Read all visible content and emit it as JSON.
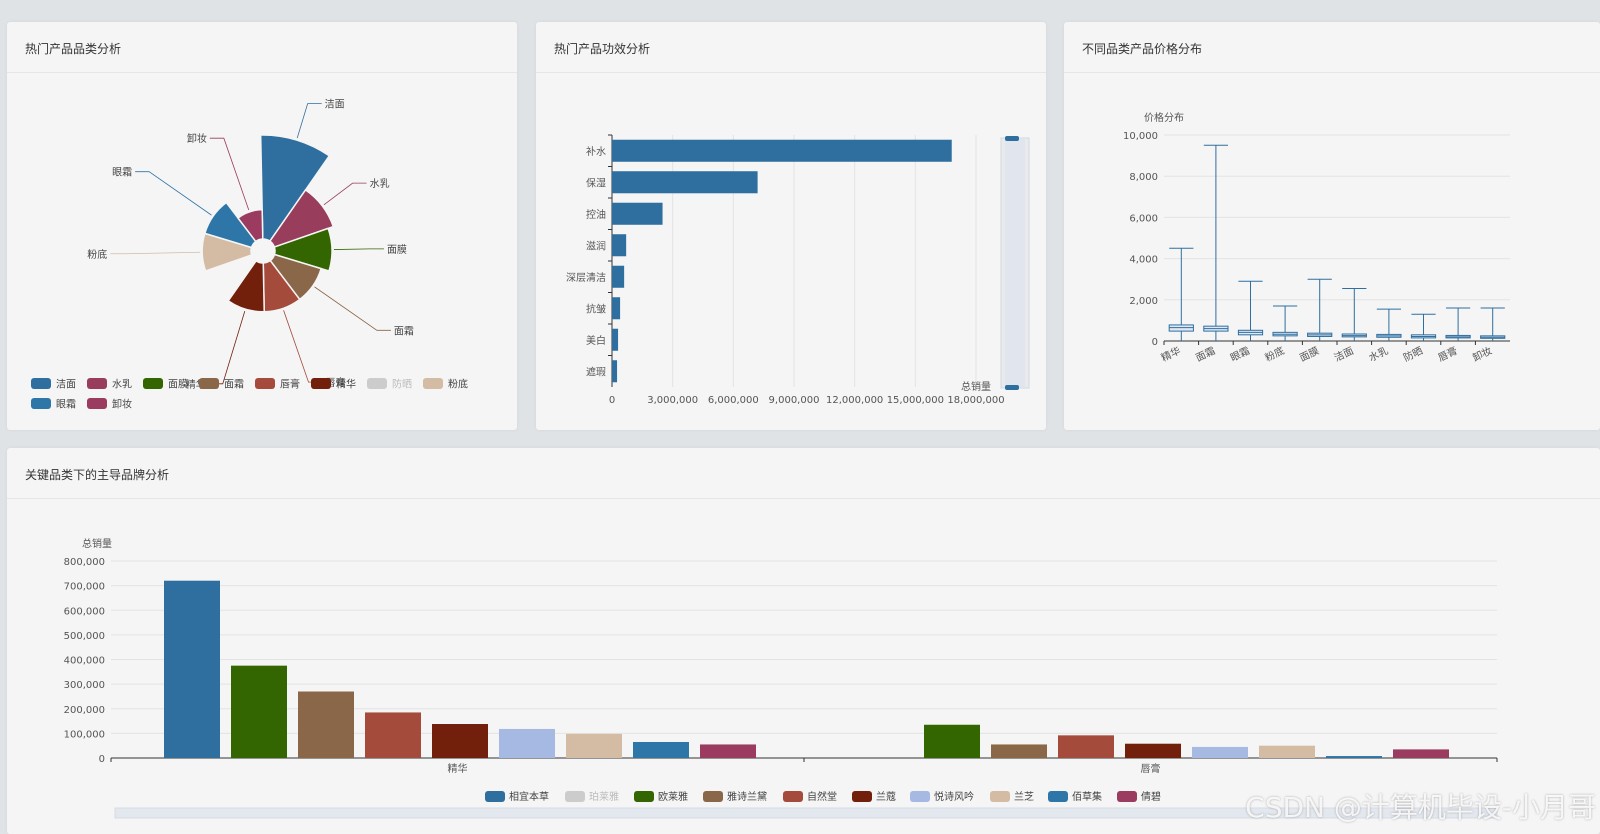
{
  "cards": {
    "category": {
      "title": "热门产品品类分析"
    },
    "efficacy": {
      "title": "热门产品功效分析"
    },
    "price": {
      "title": "不同品类产品价格分布"
    },
    "brand": {
      "title": "关键品类下的主导品牌分析"
    }
  },
  "watermark": "CSDN @计算机毕设-小月哥",
  "palette": [
    "#2f6f9f",
    "#993d5c",
    "#336600",
    "#896748",
    "#a44b3b",
    "#721f0c",
    "#a5b9e2",
    "#d4bca4",
    "#2f76a8",
    "#9a3b5f"
  ],
  "chart_data": [
    {
      "type": "pie",
      "subtype": "rose",
      "categories": [
        "洁面",
        "水乳",
        "面膜",
        "面霜",
        "唇膏",
        "精华",
        "防晒",
        "粉底",
        "眼霜",
        "卸妆"
      ],
      "values": [
        100,
        36,
        30,
        22,
        22,
        22,
        0,
        22,
        22,
        8
      ],
      "legend_inactive": [
        "防晒"
      ],
      "legend_position": "bottom-left"
    },
    {
      "type": "bar",
      "orientation": "horizontal",
      "categories": [
        "补水",
        "保湿",
        "控油",
        "滋润",
        "深层清洁",
        "抗皱",
        "美白",
        "遮瑕"
      ],
      "values": [
        16800000,
        7200000,
        2500000,
        700000,
        600000,
        400000,
        300000,
        250000
      ],
      "xlabel": "总销量",
      "xticks": [
        "0",
        "3,000,000",
        "6,000,000",
        "9,000,000",
        "12,000,000",
        "15,000,000",
        "18,000,000"
      ],
      "xlim": [
        0,
        18000000
      ],
      "grid": true,
      "datazoom": "right"
    },
    {
      "type": "boxplot",
      "categories": [
        "精华",
        "面霜",
        "眼霜",
        "粉底",
        "面膜",
        "洁面",
        "水乳",
        "防晒",
        "唇膏",
        "卸妆"
      ],
      "boxes": [
        [
          0,
          480,
          650,
          780,
          4500
        ],
        [
          0,
          480,
          600,
          720,
          9500
        ],
        [
          0,
          300,
          420,
          520,
          2900
        ],
        [
          0,
          250,
          330,
          420,
          1700
        ],
        [
          0,
          220,
          300,
          380,
          3000
        ],
        [
          0,
          200,
          260,
          340,
          2550
        ],
        [
          0,
          180,
          250,
          320,
          1550
        ],
        [
          0,
          150,
          220,
          300,
          1300
        ],
        [
          0,
          150,
          200,
          270,
          1600
        ],
        [
          0,
          130,
          180,
          250,
          1600
        ]
      ],
      "ylabel": "价格分布",
      "yticks": [
        "0",
        "2,000",
        "4,000",
        "6,000",
        "8,000",
        "10,000"
      ],
      "ylim": [
        0,
        10000
      ],
      "grid": true
    },
    {
      "type": "bar",
      "categories": [
        "精华",
        "唇膏"
      ],
      "series": [
        {
          "name": "相宜本草",
          "values": [
            720000,
            0
          ]
        },
        {
          "name": "珀莱雅",
          "values": [
            0,
            0
          ]
        },
        {
          "name": "欧莱雅",
          "values": [
            375000,
            135000
          ]
        },
        {
          "name": "雅诗兰黛",
          "values": [
            270000,
            55000
          ]
        },
        {
          "name": "自然堂",
          "values": [
            185000,
            92000
          ]
        },
        {
          "name": "兰蔻",
          "values": [
            138000,
            58000
          ]
        },
        {
          "name": "悦诗风吟",
          "values": [
            118000,
            45000
          ]
        },
        {
          "name": "兰芝",
          "values": [
            98000,
            50000
          ]
        },
        {
          "name": "佰草集",
          "values": [
            65000,
            8000
          ]
        },
        {
          "name": "倩碧",
          "values": [
            55000,
            35000
          ]
        }
      ],
      "legend_inactive": [
        "珀莱雅"
      ],
      "ylabel": "总销量",
      "yticks": [
        "0",
        "100,000",
        "200,000",
        "300,000",
        "400,000",
        "500,000",
        "600,000",
        "700,000",
        "800,000"
      ],
      "ylim": [
        0,
        800000
      ],
      "grid": true,
      "legend_position": "bottom"
    }
  ]
}
